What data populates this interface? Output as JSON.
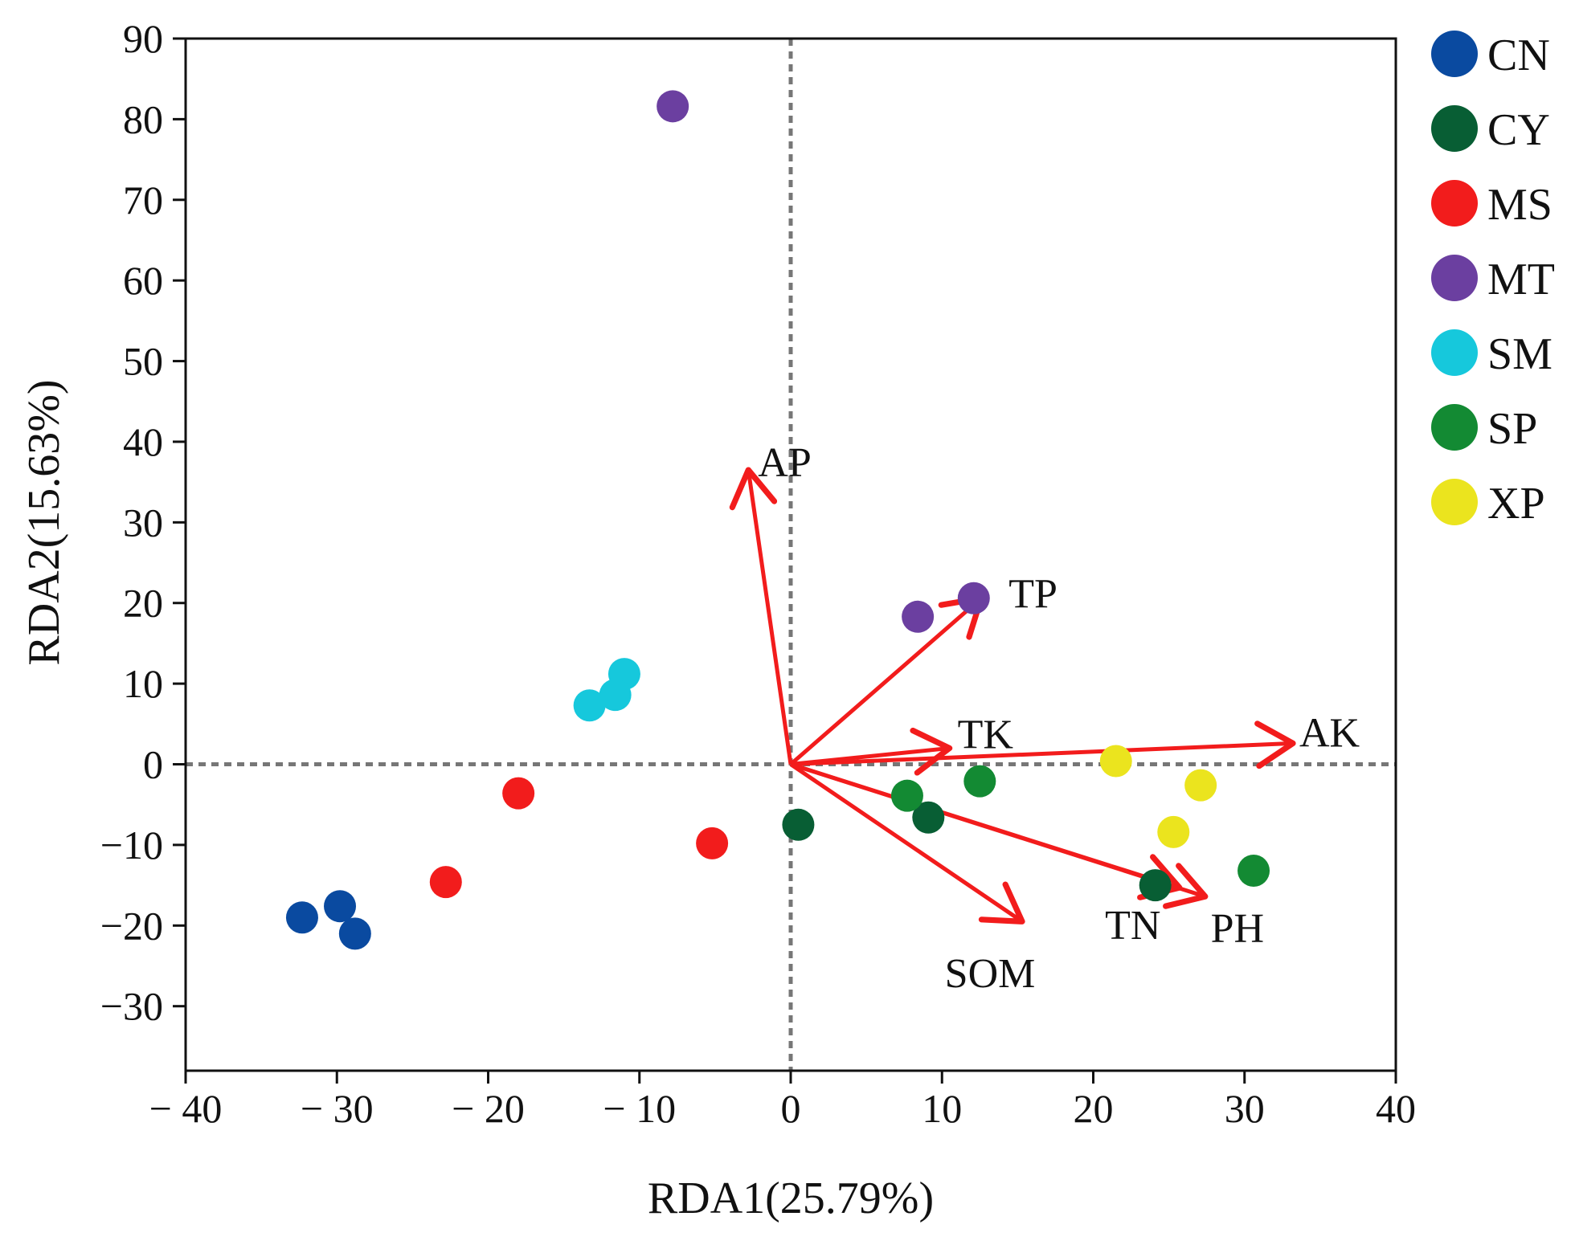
{
  "chart_data": {
    "type": "scatter",
    "title": "",
    "xlabel": "RDA1(25.79%)",
    "ylabel": "RDA2(15.63%)",
    "xlim": [
      -40,
      40
    ],
    "ylim": [
      -38,
      90
    ],
    "xticks": [
      -40,
      -30,
      -20,
      -10,
      0,
      10,
      20,
      30,
      40
    ],
    "xtick_labels": [
      "− 40",
      "− 30",
      "− 20",
      "− 10",
      "0",
      "10",
      "20",
      "30",
      "40"
    ],
    "yticks": [
      -30,
      -20,
      -10,
      0,
      10,
      20,
      30,
      40,
      50,
      60,
      70,
      80,
      90
    ],
    "ytick_labels": [
      "−30",
      "−20",
      "−10",
      "0",
      "10",
      "20",
      "30",
      "40",
      "50",
      "60",
      "70",
      "80",
      "90"
    ],
    "reference_lines": [
      {
        "axis": "x",
        "value": 0,
        "style": "dotted"
      },
      {
        "axis": "y",
        "value": 0,
        "style": "dotted"
      }
    ],
    "legend_position": "right",
    "series": [
      {
        "name": "CN",
        "color": "#0a4aa0",
        "points": [
          [
            -32.3,
            -19
          ],
          [
            -29.8,
            -17.6
          ],
          [
            -28.8,
            -21
          ]
        ]
      },
      {
        "name": "CY",
        "color": "#085e34",
        "points": [
          [
            0.5,
            -7.5
          ],
          [
            9.1,
            -6.6
          ],
          [
            24.1,
            -15
          ]
        ]
      },
      {
        "name": "MS",
        "color": "#f21c1c",
        "points": [
          [
            -18,
            -3.6
          ],
          [
            -22.8,
            -14.6
          ],
          [
            -5.2,
            -9.8
          ]
        ]
      },
      {
        "name": "MT",
        "color": "#6b3fa0",
        "points": [
          [
            -7.8,
            81.6
          ],
          [
            8.4,
            18.3
          ],
          [
            12.1,
            20.6
          ]
        ]
      },
      {
        "name": "SM",
        "color": "#16c8dc",
        "points": [
          [
            -11,
            11.2
          ],
          [
            -11.6,
            8.6
          ],
          [
            -13.3,
            7.3
          ]
        ]
      },
      {
        "name": "SP",
        "color": "#138a33",
        "points": [
          [
            7.7,
            -3.9
          ],
          [
            12.5,
            -2.1
          ],
          [
            30.6,
            -13.2
          ]
        ]
      },
      {
        "name": "XP",
        "color": "#ebe41e",
        "points": [
          [
            21.5,
            0.4
          ],
          [
            27.1,
            -2.6
          ],
          [
            25.3,
            -8.4
          ]
        ]
      }
    ],
    "vectors": {
      "color": "#f21c1c",
      "items": [
        {
          "name": "AP",
          "x": -2.8,
          "y": 36.5
        },
        {
          "name": "TP",
          "x": 12.6,
          "y": 20.6
        },
        {
          "name": "TK",
          "x": 10.5,
          "y": 2.0
        },
        {
          "name": "AK",
          "x": 33.2,
          "y": 2.6
        },
        {
          "name": "SOM",
          "x": 15.3,
          "y": -19.5
        },
        {
          "name": "TN",
          "x": 25.7,
          "y": -15.3
        },
        {
          "name": "PH",
          "x": 27.4,
          "y": -16.4
        }
      ]
    }
  }
}
